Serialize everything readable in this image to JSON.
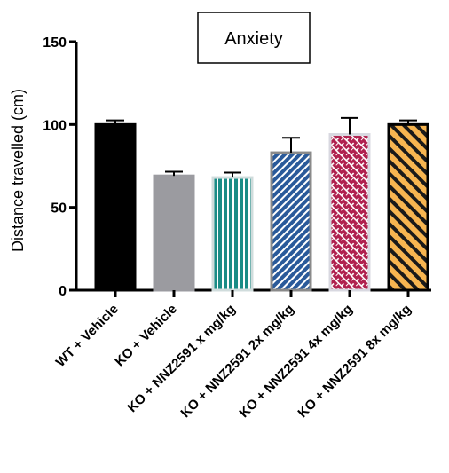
{
  "chart_data": {
    "type": "bar",
    "title": "Anxiety",
    "xlabel": "",
    "ylabel": "Distance travelled (cm)",
    "ylim": [
      0,
      150
    ],
    "yticks": [
      0,
      50,
      100,
      150
    ],
    "categories": [
      "WT + Vehicle",
      "KO + Vehicle",
      "KO + NNZ2591 x mg/kg",
      "KO + NNZ2591 2x mg/kg",
      "KO + NNZ2591 4x mg/kg",
      "KO + NNZ2591 8x mg/kg"
    ],
    "values": [
      100,
      69,
      68,
      83,
      94,
      100
    ],
    "errors": [
      2.5,
      2.5,
      3,
      9,
      10,
      2.5
    ],
    "colors": [
      "#000000",
      "#9b9ba0",
      "#1a8c86",
      "#2a5a9a",
      "#b0204e",
      "#f7b550"
    ],
    "grid": false,
    "legend": "none"
  }
}
